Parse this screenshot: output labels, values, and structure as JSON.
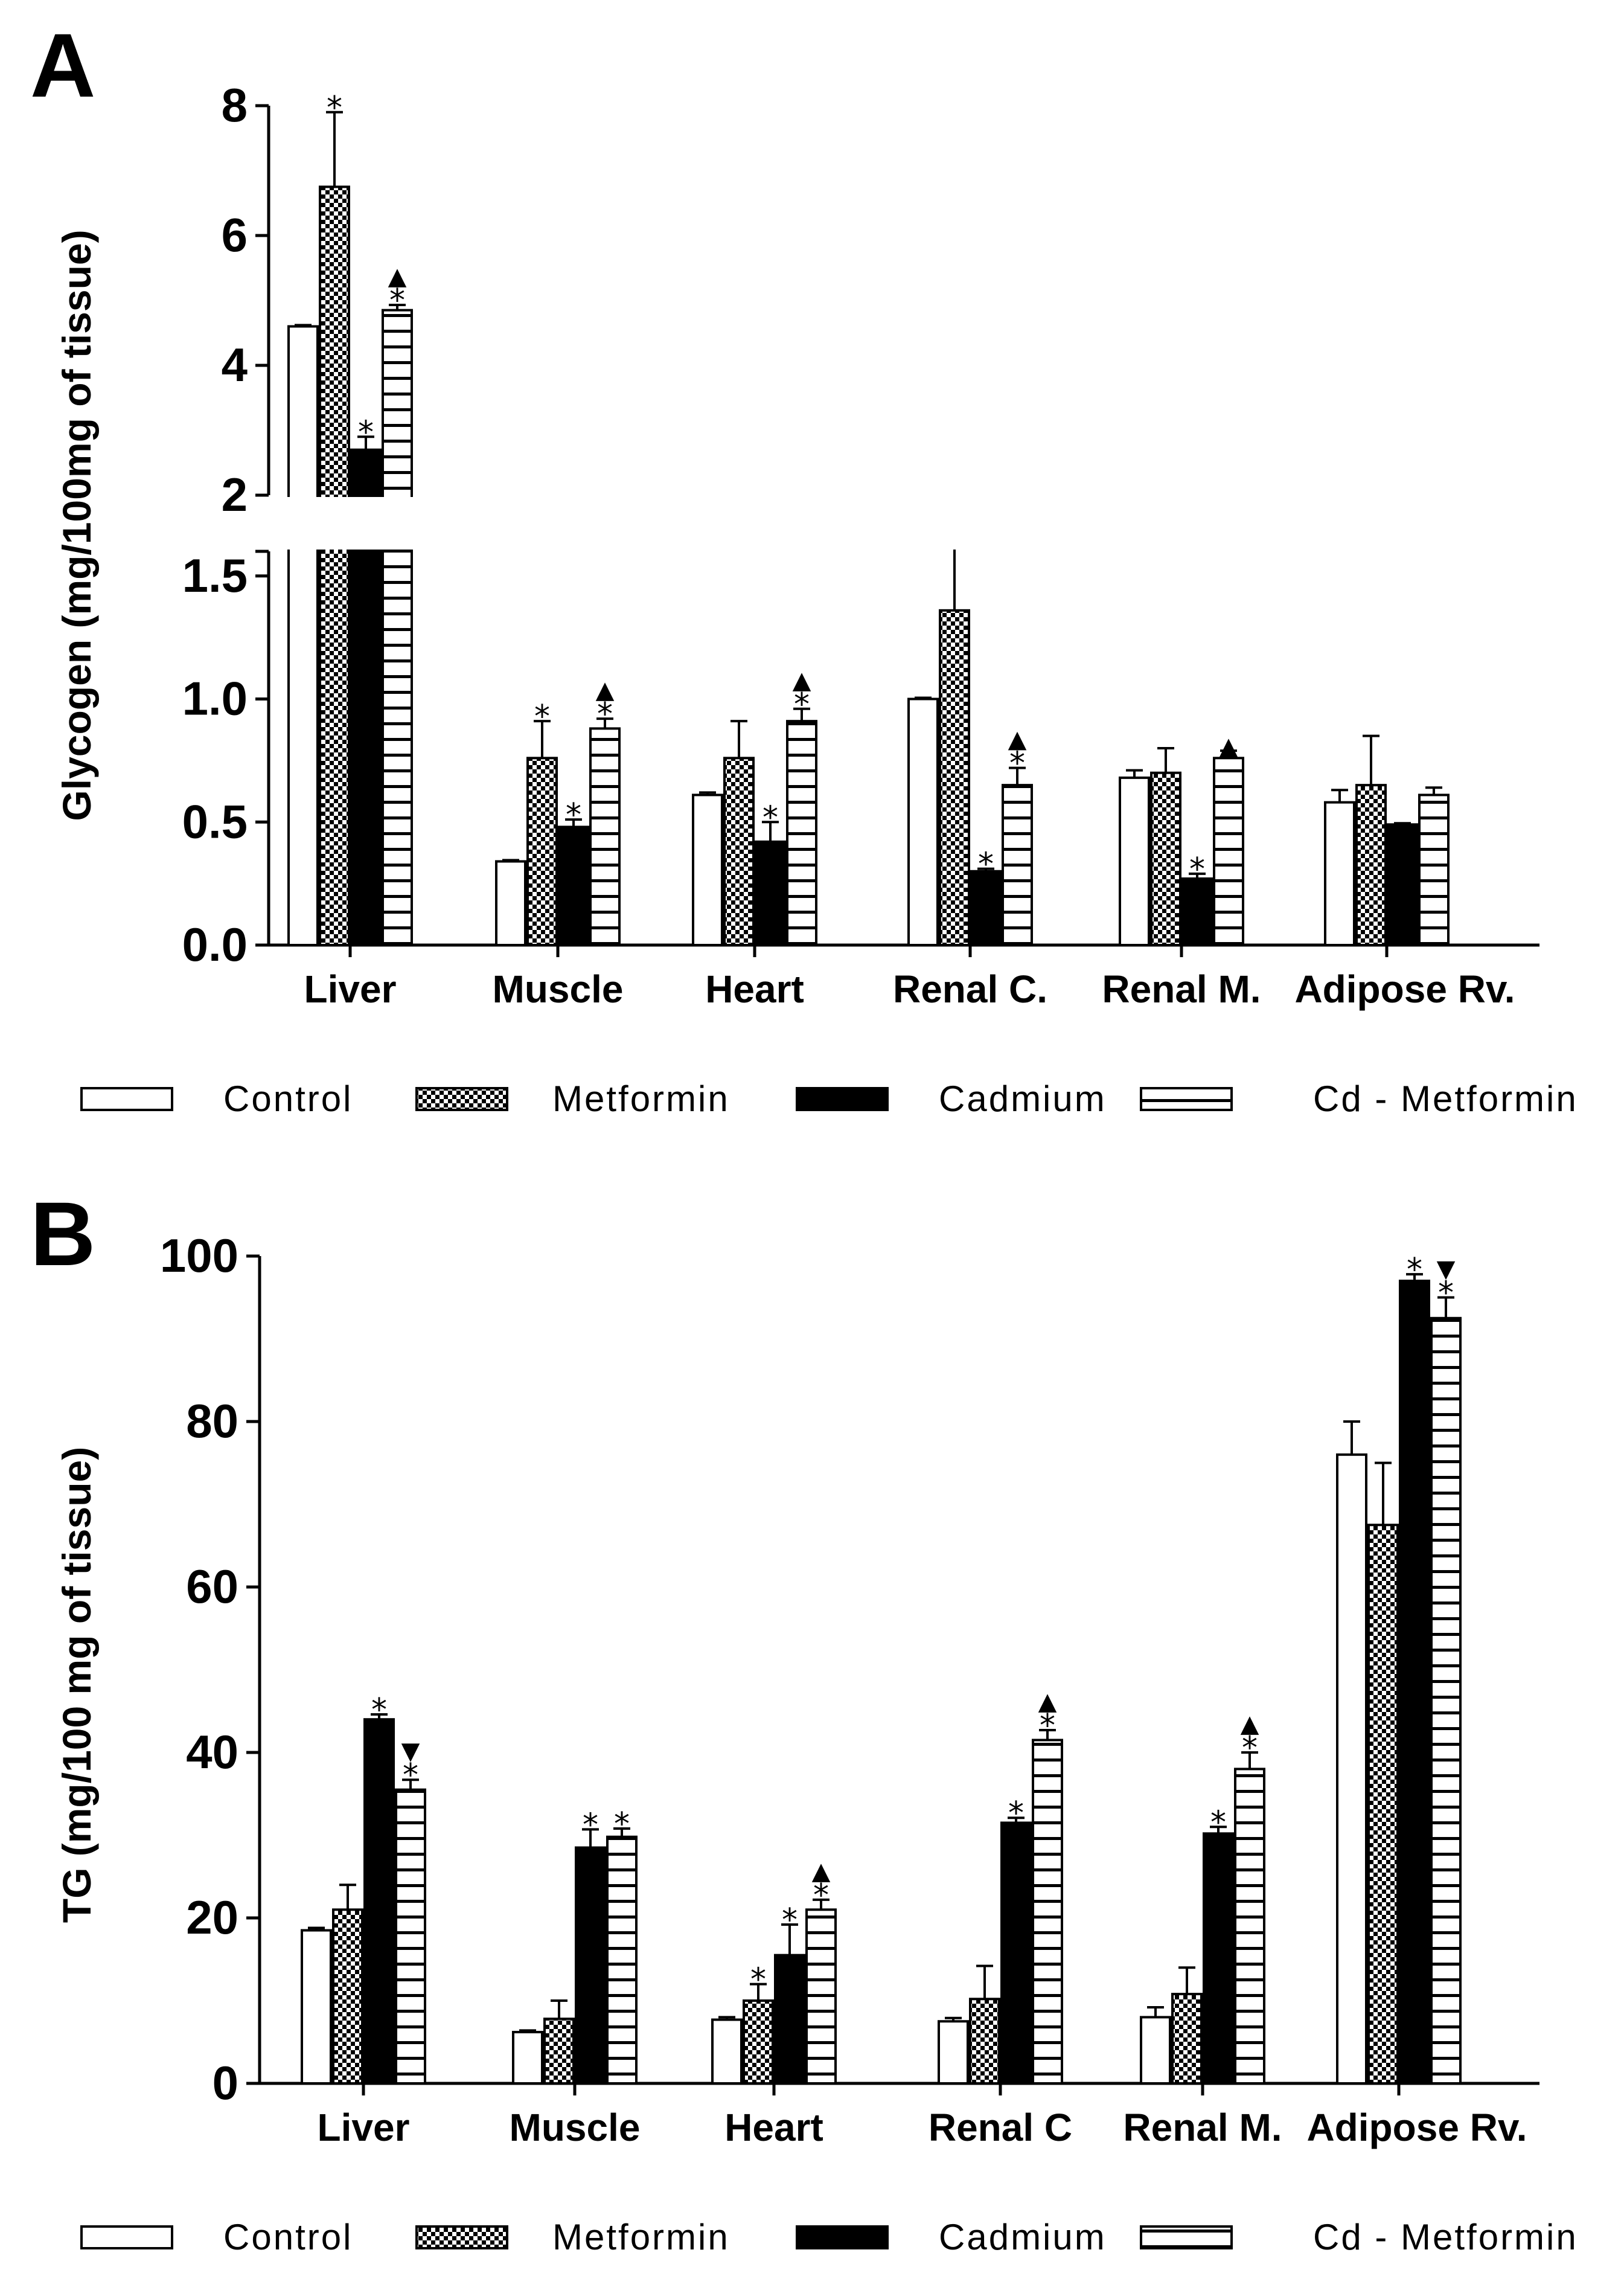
{
  "chart_data": [
    {
      "panel": "A",
      "type": "bar",
      "ylabel": "Glycogen (mg/100mg of tissue)",
      "axis_break": {
        "lower": [
          0,
          1.6
        ],
        "upper": [
          2,
          8
        ]
      },
      "lower_ticks": [
        "0.0",
        "0.5",
        "1.0",
        "1.5"
      ],
      "upper_ticks": [
        "2",
        "4",
        "6",
        "8"
      ],
      "categories": [
        "Liver",
        "Muscle",
        "Heart",
        "Renal C.",
        "Renal M.",
        "Adipose Rv."
      ],
      "legend": {
        "position": "bottom",
        "entries": [
          "Control",
          "Metformin",
          "Cadmium",
          "Cd - Metformin"
        ]
      },
      "series": [
        {
          "name": "Control",
          "pattern": "white",
          "values": [
            4.6,
            0.34,
            0.61,
            1.0,
            0.68,
            0.58
          ],
          "errors": [
            0.02,
            0.005,
            0.01,
            0.005,
            0.03,
            0.05
          ],
          "star": [
            "",
            "",
            "",
            "",
            "",
            ""
          ],
          "tri": [
            "",
            "",
            "",
            "",
            "",
            ""
          ]
        },
        {
          "name": "Metformin",
          "pattern": "checker",
          "values": [
            6.75,
            0.76,
            0.76,
            1.36,
            0.7,
            0.65
          ],
          "errors": [
            1.15,
            0.15,
            0.15,
            0.26,
            0.1,
            0.2
          ],
          "star": [
            "*",
            "*",
            "",
            "*",
            "",
            ""
          ],
          "tri": [
            "",
            "",
            "",
            "",
            "",
            ""
          ]
        },
        {
          "name": "Cadmium",
          "pattern": "black",
          "values": [
            2.7,
            0.48,
            0.42,
            0.3,
            0.27,
            0.49
          ],
          "errors": [
            0.2,
            0.03,
            0.08,
            0.01,
            0.02,
            0.005
          ],
          "star": [
            "*",
            "*",
            "*",
            "*",
            "*",
            ""
          ],
          "tri": [
            "",
            "",
            "",
            "",
            "",
            ""
          ]
        },
        {
          "name": "Cd - Metformin",
          "pattern": "hstripe",
          "values": [
            4.85,
            0.88,
            0.91,
            0.65,
            0.76,
            0.61
          ],
          "errors": [
            0.08,
            0.04,
            0.05,
            0.07,
            0.03,
            0.03
          ],
          "star": [
            "*",
            "*",
            "*",
            "*",
            "",
            ""
          ],
          "tri": [
            "▲",
            "▲",
            "▲",
            "▲",
            "▲",
            ""
          ]
        }
      ]
    },
    {
      "panel": "B",
      "type": "bar",
      "ylabel": "TG (mg/100 mg of tissue)",
      "ylim": [
        0,
        100
      ],
      "yticks": [
        "0",
        "20",
        "40",
        "60",
        "80",
        "100"
      ],
      "categories": [
        "Liver",
        "Muscle",
        "Heart",
        "Renal C",
        "Renal M.",
        "Adipose Rv."
      ],
      "legend": {
        "position": "bottom",
        "entries": [
          "Control",
          "Metformin",
          "Cadmium",
          "Cd - Metformin"
        ]
      },
      "series": [
        {
          "name": "Control",
          "pattern": "white",
          "values": [
            18.5,
            6.2,
            7.7,
            7.5,
            8.0,
            76.0
          ],
          "errors": [
            0.3,
            0.2,
            0.3,
            0.4,
            1.2,
            4.0
          ],
          "star": [
            "",
            "",
            "",
            "",
            "",
            ""
          ],
          "tri": [
            "",
            "",
            "",
            "",
            "",
            ""
          ]
        },
        {
          "name": "Metformin",
          "pattern": "checker",
          "values": [
            21.0,
            7.8,
            10.0,
            10.2,
            10.8,
            67.5
          ],
          "errors": [
            3.0,
            2.2,
            2.0,
            4.0,
            3.2,
            7.5
          ],
          "star": [
            "",
            "",
            "*",
            "",
            "",
            ""
          ],
          "tri": [
            "",
            "",
            "",
            "",
            "",
            ""
          ]
        },
        {
          "name": "Cadmium",
          "pattern": "black",
          "values": [
            44.0,
            28.5,
            15.5,
            31.5,
            30.2,
            97.0
          ],
          "errors": [
            0.6,
            2.2,
            3.7,
            0.6,
            0.8,
            0.8
          ],
          "star": [
            "*",
            "*",
            "*",
            "*",
            "*",
            "*"
          ],
          "tri": [
            "",
            "",
            "",
            "",
            "",
            ""
          ]
        },
        {
          "name": "Cd - Metformin",
          "pattern": "hstripe",
          "values": [
            35.5,
            29.8,
            21.0,
            41.5,
            38.0,
            92.5
          ],
          "errors": [
            1.2,
            1.0,
            1.2,
            1.2,
            2.0,
            2.5
          ],
          "star": [
            "*",
            "*",
            "*",
            "*",
            "*",
            "*"
          ],
          "tri": [
            "▼",
            "",
            "▲",
            "▲",
            "▲",
            "▼"
          ]
        }
      ]
    }
  ]
}
